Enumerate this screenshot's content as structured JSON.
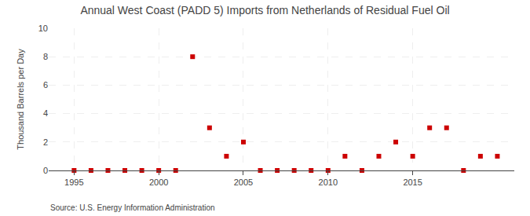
{
  "chart_data": {
    "type": "scatter",
    "title": "Annual West Coast (PADD 5) Imports from Netherlands of Residual Fuel Oil",
    "ylabel": "Thousand Barrels per Day",
    "annotations": [
      "Source: U.S. Energy Information Administration"
    ],
    "x": [
      1995,
      1996,
      1997,
      1998,
      1999,
      2000,
      2001,
      2002,
      2003,
      2004,
      2005,
      2006,
      2007,
      2008,
      2009,
      2010,
      2011,
      2012,
      2013,
      2014,
      2015,
      2016,
      2017,
      2018,
      2019,
      2020
    ],
    "values": [
      0,
      0,
      0,
      0,
      0,
      0,
      0,
      8,
      3,
      1,
      2,
      0,
      0,
      0,
      0,
      0,
      1,
      0,
      1,
      2,
      1,
      3,
      3,
      0,
      1,
      1
    ],
    "color": "#cc0000",
    "marker": "square",
    "xlim": [
      1993.5,
      2021
    ],
    "xticks": [
      1995,
      2000,
      2005,
      2010,
      2015
    ],
    "ylim": [
      0,
      10
    ],
    "yticks": [
      0,
      2,
      4,
      6,
      8,
      10
    ],
    "grid": true
  }
}
